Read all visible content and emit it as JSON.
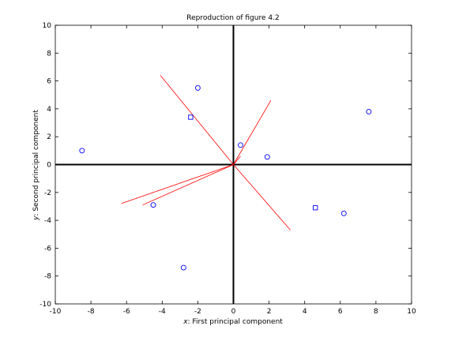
{
  "chart_data": {
    "type": "scatter",
    "title": "Reproduction of figure 4.2",
    "xlabel_var": "x",
    "xlabel_text": ": First principal component",
    "ylabel_var": "y",
    "ylabel_text": ": Second principal component",
    "xlim": [
      -10,
      10
    ],
    "ylim": [
      -10,
      10
    ],
    "xticks": [
      -10,
      -8,
      -6,
      -4,
      -2,
      0,
      2,
      4,
      6,
      8,
      10
    ],
    "yticks": [
      -10,
      -8,
      -6,
      -4,
      -2,
      0,
      2,
      4,
      6,
      8,
      10
    ],
    "grid": false,
    "colors": {
      "markers": "#0000ff",
      "vectors": "#ff0000",
      "axes_cross": "#000000"
    },
    "circles": [
      {
        "x": -8.5,
        "y": 1.0
      },
      {
        "x": -2.0,
        "y": 5.5
      },
      {
        "x": 0.4,
        "y": 1.4
      },
      {
        "x": 1.9,
        "y": 0.55
      },
      {
        "x": 7.6,
        "y": 3.8
      },
      {
        "x": -4.5,
        "y": -2.9
      },
      {
        "x": 6.2,
        "y": -3.5
      },
      {
        "x": -2.8,
        "y": -7.4
      }
    ],
    "squares": [
      {
        "x": -2.4,
        "y": 3.4
      },
      {
        "x": 4.6,
        "y": -3.1
      }
    ],
    "vectors": [
      {
        "x": -4.1,
        "y": 6.4
      },
      {
        "x": 2.1,
        "y": 4.6
      },
      {
        "x": -6.3,
        "y": -2.8
      },
      {
        "x": -5.1,
        "y": -2.9
      },
      {
        "x": 3.2,
        "y": -4.7
      },
      {
        "x": 0.4,
        "y": 0.6
      }
    ]
  }
}
